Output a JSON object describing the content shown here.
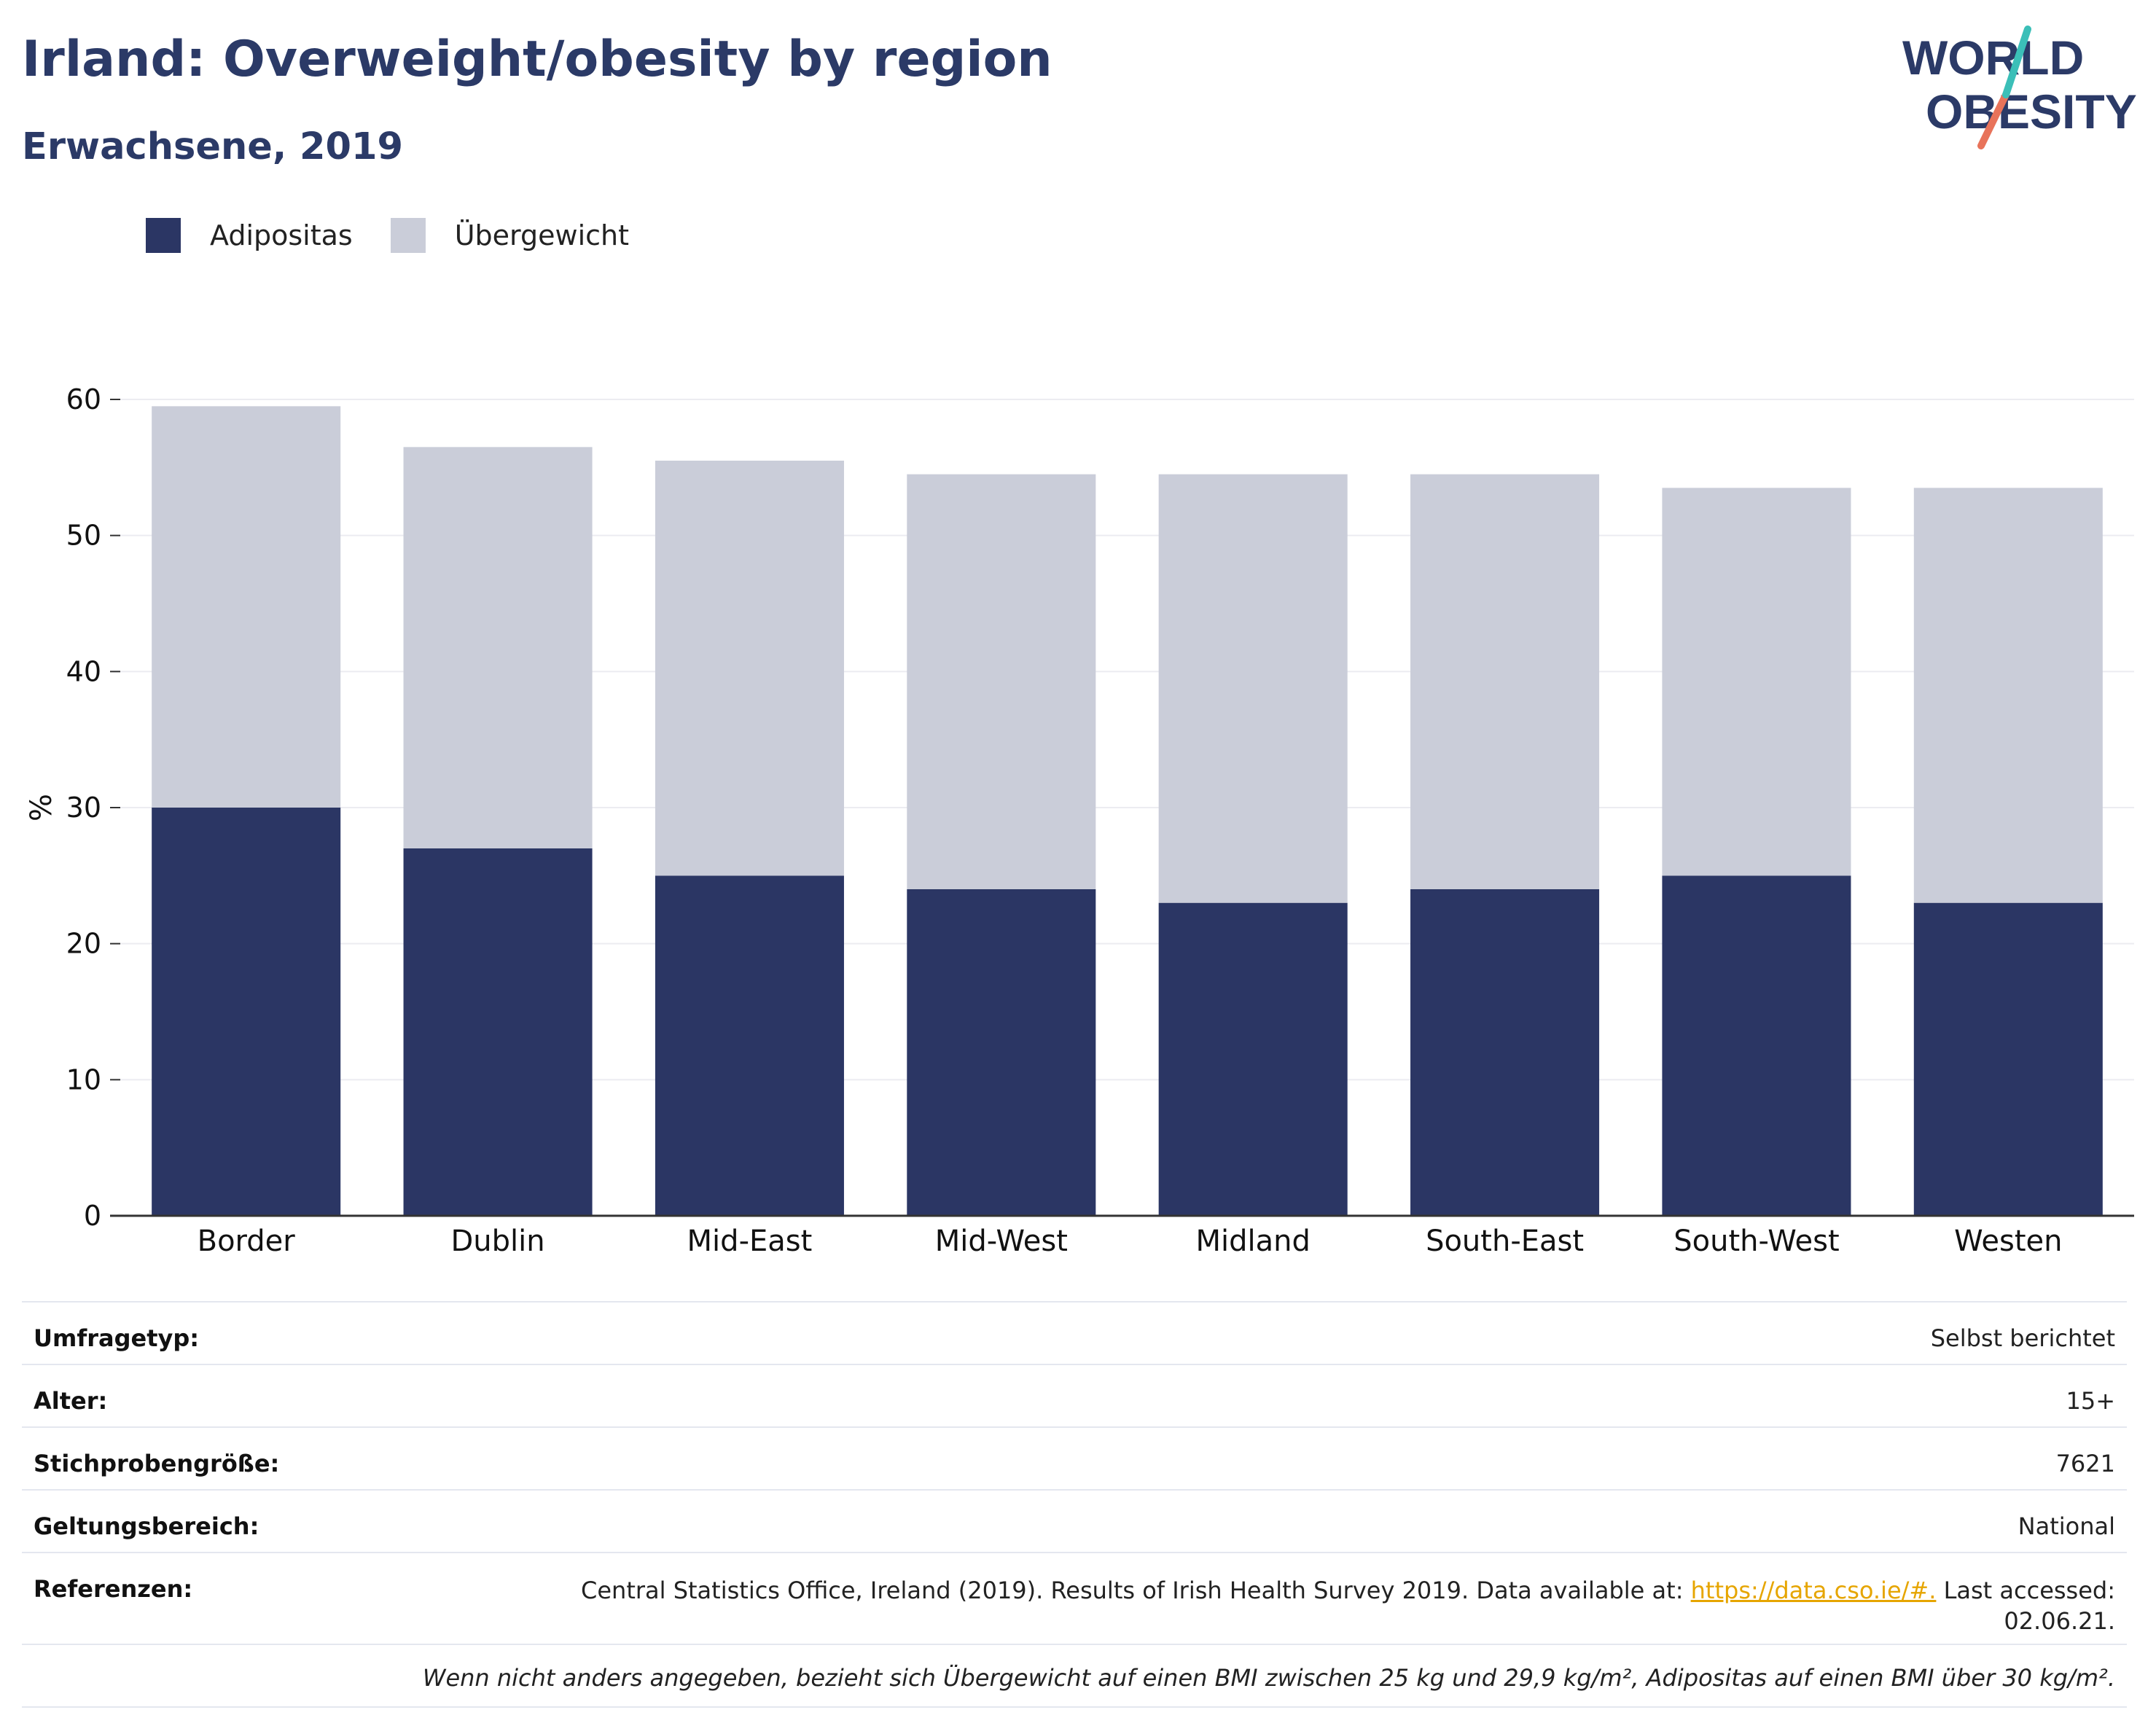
{
  "header": {
    "title": "Irland: Overweight/obesity by region",
    "subtitle": "Erwachsene, 2019"
  },
  "logo": {
    "line1": "WORLD",
    "line2": "OBESITY"
  },
  "legend": [
    {
      "label": "Adipositas",
      "color": "#2b3664"
    },
    {
      "label": "Übergewicht",
      "color": "#cacdd9"
    }
  ],
  "chart_data": {
    "type": "bar",
    "stacked": true,
    "categories": [
      "Border",
      "Dublin",
      "Mid-East",
      "Mid-West",
      "Midland",
      "South-East",
      "South-West",
      "Westen"
    ],
    "series": [
      {
        "name": "Adipositas",
        "color": "#2b3664",
        "values": [
          30,
          27,
          25,
          24,
          23,
          24,
          25,
          23
        ]
      },
      {
        "name": "Übergewicht",
        "color": "#cacdd9",
        "values": [
          29.5,
          29.5,
          30.5,
          30.5,
          31.5,
          30.5,
          28.5,
          30.5
        ]
      }
    ],
    "ylabel": "%",
    "ylim": [
      0,
      60
    ],
    "yticks": [
      0,
      10,
      20,
      30,
      40,
      50,
      60
    ],
    "grid": true,
    "legend_position": "top-left"
  },
  "meta": {
    "survey_type_label": "Umfragetyp:",
    "survey_type_value": "Selbst berichtet",
    "age_label": "Alter:",
    "age_value": "15+",
    "sample_label": "Stichprobengröße:",
    "sample_value": "7621",
    "scope_label": "Geltungsbereich:",
    "scope_value": "National",
    "refs_label": "Referenzen:",
    "refs_text_before": "Central Statistics Office, Ireland (2019). Results of Irish Health Survey 2019. Data available at: ",
    "refs_link": "https://data.cso.ie/#.",
    "refs_text_after": " Last accessed: 02.06.21.",
    "footnote": "Wenn nicht anders angegeben, bezieht sich Übergewicht auf einen BMI zwischen 25 kg und 29,9 kg/m², Adipositas auf einen BMI über 30 kg/m²."
  }
}
